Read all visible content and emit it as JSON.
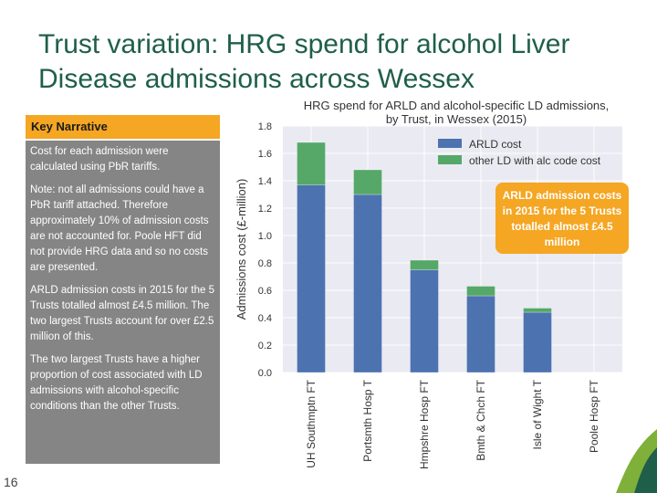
{
  "slide": {
    "title": "Trust variation: HRG spend for alcohol Liver Disease admissions across Wessex",
    "page_number": "16",
    "narrative_heading": "Key Narrative",
    "narrative": [
      "Cost for each admission were calculated using PbR tariffs.",
      "Note: not all admissions could have a PbR tariff attached. Therefore approximately 10% of admission costs are not accounted for. Poole HFT did not provide HRG data and so no costs are presented.",
      "ARLD admission costs in 2015 for the 5 Trusts totalled almost £4.5 million. The two largest Trusts account for over £2.5 million of this.",
      "The two largest Trusts have a higher proportion of cost associated with LD admissions with alcohol-specific conditions than the other Trusts."
    ],
    "callout": "ARLD admission costs in 2015 for the 5 Trusts totalled almost £4.5 million"
  },
  "colors": {
    "arld": "#4c72b0",
    "other": "#55a868",
    "title_green": "#1f5f4a",
    "orange": "#f5a623",
    "panel": "#eaeaf2"
  },
  "chart_data": {
    "type": "bar",
    "stacked": true,
    "title": "HRG spend for ARLD and alcohol-specific LD admissions, by Trust, in Wessex (2015)",
    "title_lines": [
      "HRG spend for ARLD and alcohol-specific LD admissions,",
      "by Trust, in Wessex (2015)"
    ],
    "xlabel": "",
    "ylabel": "Admissions cost (£-million)",
    "ylim": [
      0,
      1.8
    ],
    "yticks": [
      0.0,
      0.2,
      0.4,
      0.6,
      0.8,
      1.0,
      1.2,
      1.4,
      1.6,
      1.8
    ],
    "categories": [
      "UH Southmptn FT",
      "Portsmth Hosp T",
      "Hmpshre Hosp FT",
      "Bmth & Chch FT",
      "Isle of Wight T",
      "Poole Hosp FT"
    ],
    "series": [
      {
        "name": "ARLD cost",
        "color": "#4c72b0",
        "values": [
          1.37,
          1.3,
          0.75,
          0.56,
          0.44,
          0.0
        ]
      },
      {
        "name": "other LD with alc code cost",
        "color": "#55a868",
        "values": [
          0.31,
          0.18,
          0.07,
          0.07,
          0.03,
          0.0
        ]
      }
    ],
    "grid": true,
    "legend": "top-right"
  }
}
